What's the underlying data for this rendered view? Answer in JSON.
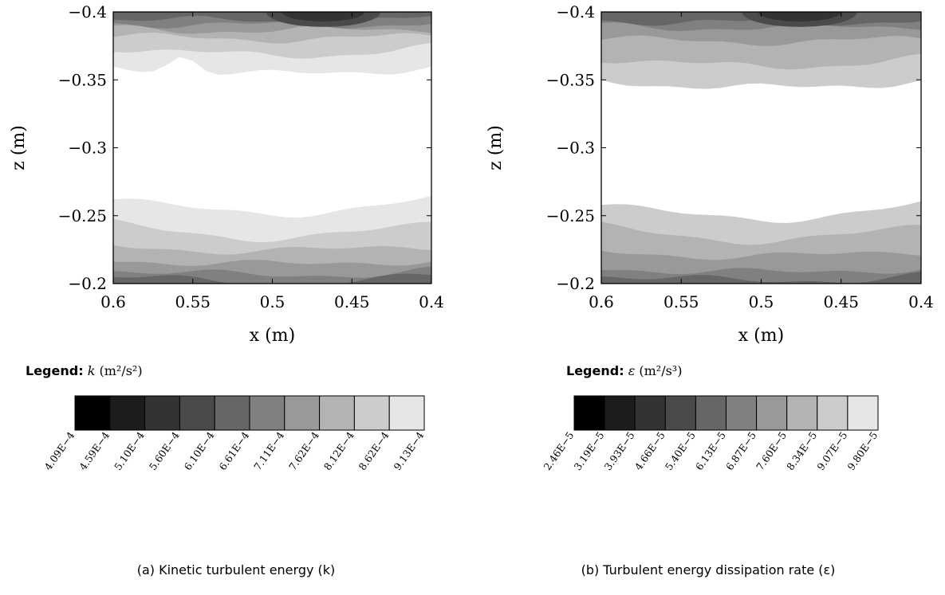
{
  "chart_data": [
    {
      "type": "heatmap",
      "xlabel": "x (m)",
      "ylabel": "z (m)",
      "xlim": [
        0.6,
        0.4
      ],
      "ylim": [
        -0.2,
        -0.4
      ],
      "x_ticks": [
        "0.6",
        "0.55",
        "0.5",
        "0.45",
        "0.4"
      ],
      "y_ticks": [
        "−0.4",
        "−0.35",
        "−0.3",
        "−0.25",
        "−0.2"
      ],
      "x_tick_values": [
        0.6,
        0.55,
        0.5,
        0.45,
        0.4
      ],
      "y_tick_values": [
        -0.4,
        -0.35,
        -0.3,
        -0.25,
        -0.2
      ],
      "legend_title": "Legend:",
      "legend_symbol": "k",
      "legend_unit": "(m²/s²)",
      "colorbar_labels": [
        "4.09E−4",
        "4.59E−4",
        "5.10E−4",
        "5.60E−4",
        "6.10E−4",
        "6.61E−4",
        "7.11E−4",
        "7.62E−4",
        "8.12E−4",
        "8.62E−4",
        "9.13E−4"
      ],
      "colorbar_colors": [
        "#000000",
        "#1c1c1c",
        "#333333",
        "#4a4a4a",
        "#666666",
        "#808080",
        "#999999",
        "#b3b3b3",
        "#cccccc",
        "#e6e6e6"
      ],
      "caption": "(a) Kinetic turbulent energy (k)"
    },
    {
      "type": "heatmap",
      "xlabel": "x (m)",
      "ylabel": "z (m)",
      "xlim": [
        0.6,
        0.4
      ],
      "ylim": [
        -0.2,
        -0.4
      ],
      "x_ticks": [
        "0.6",
        "0.55",
        "0.5",
        "0.45",
        "0.4"
      ],
      "y_ticks": [
        "−0.4",
        "−0.35",
        "−0.3",
        "−0.25",
        "−0.2"
      ],
      "x_tick_values": [
        0.6,
        0.55,
        0.5,
        0.45,
        0.4
      ],
      "y_tick_values": [
        -0.4,
        -0.35,
        -0.3,
        -0.25,
        -0.2
      ],
      "legend_title": "Legend:",
      "legend_symbol": "ε",
      "legend_unit": "(m²/s³)",
      "colorbar_labels": [
        "2.46E−5",
        "3.19E−5",
        "3.93E−5",
        "4.66E−5",
        "5.40E−5",
        "6.13E−5",
        "6.87E−5",
        "7.60E−5",
        "8.34E−5",
        "9.07E−5",
        "9.80E−5"
      ],
      "colorbar_colors": [
        "#000000",
        "#1c1c1c",
        "#333333",
        "#4a4a4a",
        "#666666",
        "#808080",
        "#999999",
        "#b3b3b3",
        "#cccccc",
        "#e6e6e6"
      ],
      "caption": "(b) Turbulent energy dissipation rate (ε)"
    }
  ]
}
